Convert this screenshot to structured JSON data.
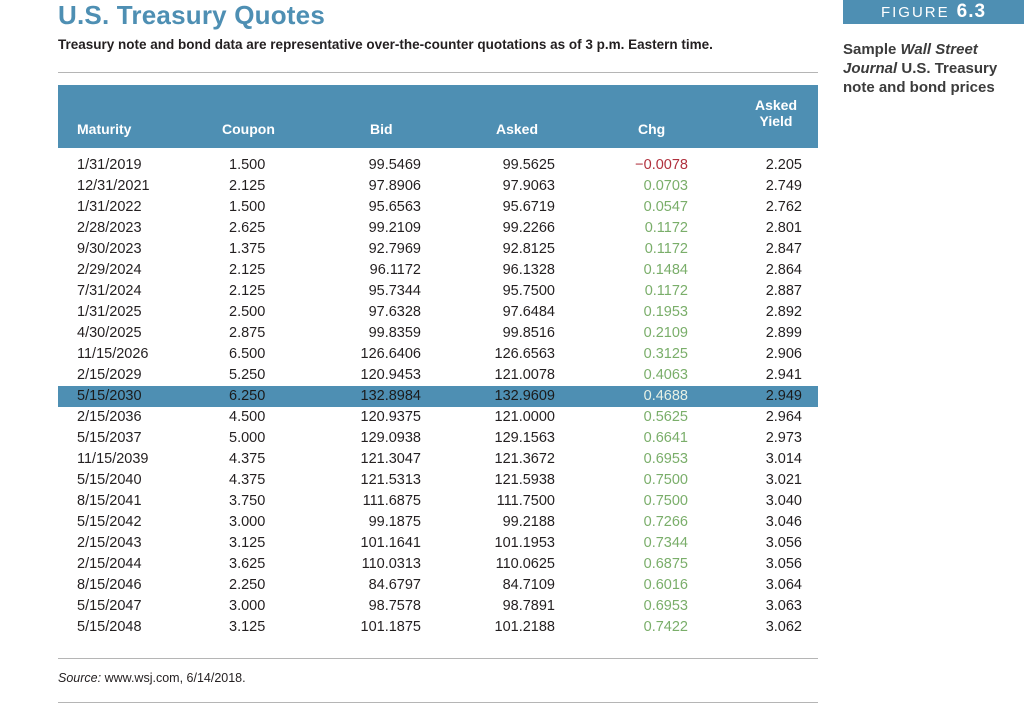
{
  "title": "U.S. Treasury Quotes",
  "subtitle": "Treasury note and bond data are representative over-the-counter quotations as of 3 p.m. Eastern time.",
  "figure": {
    "word": "FIGURE",
    "number": "6.3",
    "caption_pre": "Sample ",
    "caption_italic": "Wall Street Journal",
    "caption_post": " U.S. Treasury note and bond prices"
  },
  "table": {
    "headers": [
      "Maturity",
      "Coupon",
      "Bid",
      "Asked",
      "Chg",
      "Asked Yield"
    ],
    "header_yield_top": "Asked",
    "header_yield_bottom": "Yield",
    "highlight_row": 11,
    "rows": [
      [
        "1/31/2019",
        "1.500",
        "99.5469",
        "99.5625",
        "−0.0078",
        "2.205"
      ],
      [
        "12/31/2021",
        "2.125",
        "97.8906",
        "97.9063",
        "0.0703",
        "2.749"
      ],
      [
        "1/31/2022",
        "1.500",
        "95.6563",
        "95.6719",
        "0.0547",
        "2.762"
      ],
      [
        "2/28/2023",
        "2.625",
        "99.2109",
        "99.2266",
        "0.1172",
        "2.801"
      ],
      [
        "9/30/2023",
        "1.375",
        "92.7969",
        "92.8125",
        "0.1172",
        "2.847"
      ],
      [
        "2/29/2024",
        "2.125",
        "96.1172",
        "96.1328",
        "0.1484",
        "2.864"
      ],
      [
        "7/31/2024",
        "2.125",
        "95.7344",
        "95.7500",
        "0.1172",
        "2.887"
      ],
      [
        "1/31/2025",
        "2.500",
        "97.6328",
        "97.6484",
        "0.1953",
        "2.892"
      ],
      [
        "4/30/2025",
        "2.875",
        "99.8359",
        "99.8516",
        "0.2109",
        "2.899"
      ],
      [
        "11/15/2026",
        "6.500",
        "126.6406",
        "126.6563",
        "0.3125",
        "2.906"
      ],
      [
        "2/15/2029",
        "5.250",
        "120.9453",
        "121.0078",
        "0.4063",
        "2.941"
      ],
      [
        "5/15/2030",
        "6.250",
        "132.8984",
        "132.9609",
        "0.4688",
        "2.949"
      ],
      [
        "2/15/2036",
        "4.500",
        "120.9375",
        "121.0000",
        "0.5625",
        "2.964"
      ],
      [
        "5/15/2037",
        "5.000",
        "129.0938",
        "129.1563",
        "0.6641",
        "2.973"
      ],
      [
        "11/15/2039",
        "4.375",
        "121.3047",
        "121.3672",
        "0.6953",
        "3.014"
      ],
      [
        "5/15/2040",
        "4.375",
        "121.5313",
        "121.5938",
        "0.7500",
        "3.021"
      ],
      [
        "8/15/2041",
        "3.750",
        "111.6875",
        "111.7500",
        "0.7500",
        "3.040"
      ],
      [
        "5/15/2042",
        "3.000",
        "99.1875",
        "99.2188",
        "0.7266",
        "3.046"
      ],
      [
        "2/15/2043",
        "3.125",
        "101.1641",
        "101.1953",
        "0.7344",
        "3.056"
      ],
      [
        "2/15/2044",
        "3.625",
        "110.0313",
        "110.0625",
        "0.6875",
        "3.056"
      ],
      [
        "8/15/2046",
        "2.250",
        "84.6797",
        "84.7109",
        "0.6016",
        "3.064"
      ],
      [
        "5/15/2047",
        "3.000",
        "98.7578",
        "98.7891",
        "0.6953",
        "3.063"
      ],
      [
        "5/15/2048",
        "3.125",
        "101.1875",
        "101.2188",
        "0.7422",
        "3.062"
      ]
    ]
  },
  "source": {
    "label": "Source:",
    "text": " www.wsj.com, 6/14/2018."
  },
  "colors": {
    "accent": "#4e8fb3",
    "positive_change": "#7aae6a",
    "negative_change": "#b0303d"
  }
}
